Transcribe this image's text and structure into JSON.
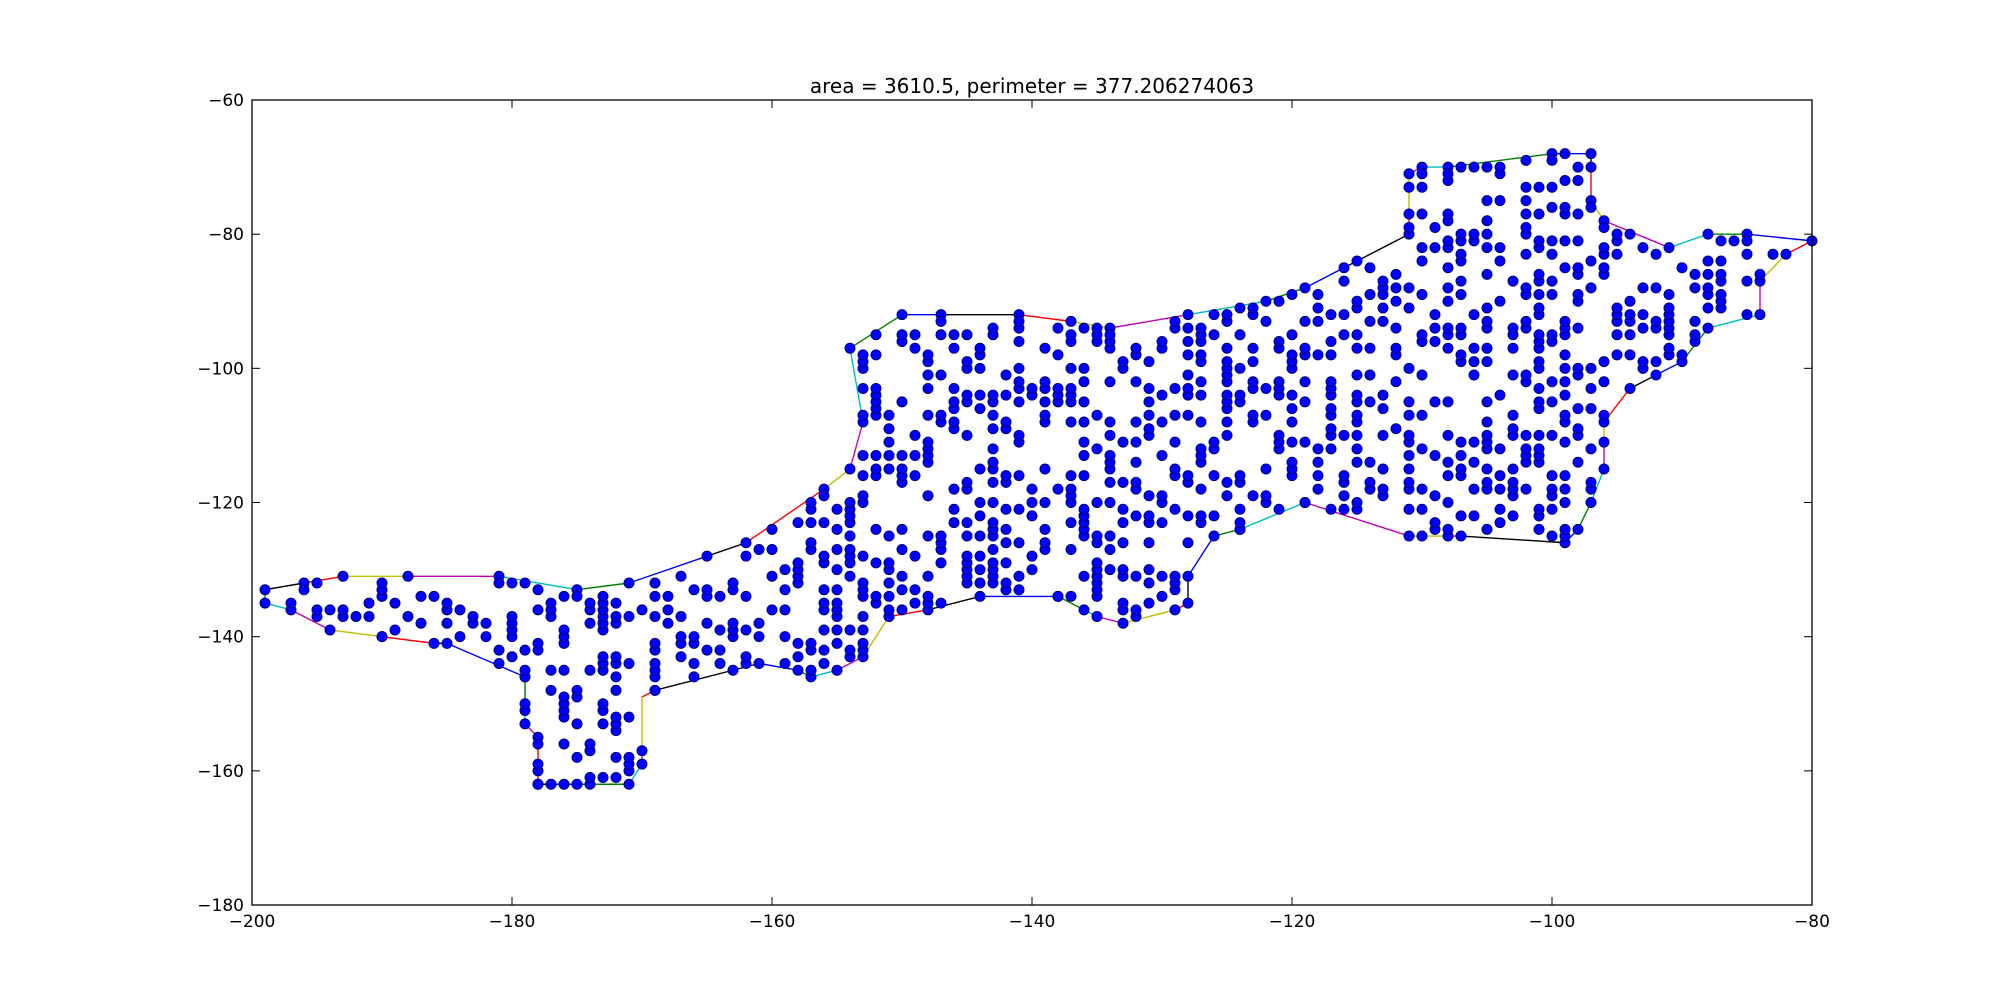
{
  "chart_data": {
    "type": "scatter",
    "title": "area = 3610.5, perimeter = 377.206274063",
    "xlabel": "",
    "ylabel": "",
    "xlim": [
      -200,
      -80
    ],
    "ylim": [
      -180,
      -60
    ],
    "xticks": [
      -200,
      -180,
      -160,
      -140,
      -120,
      -100,
      -80
    ],
    "yticks": [
      -180,
      -160,
      -140,
      -120,
      -100,
      -80,
      -60
    ],
    "xtick_labels": [
      "−200",
      "−180",
      "−160",
      "−140",
      "−120",
      "−100",
      "−80"
    ],
    "ytick_labels": [
      "−180",
      "−160",
      "−140",
      "−120",
      "−100",
      "−80",
      "−60"
    ],
    "grid": false,
    "point_color": "#0000ff",
    "point_edge_color": "#000080",
    "boundary": {
      "note_colors": [
        "#000000",
        "#ff0000",
        "#bfbf00",
        "#bf00bf",
        "#00bfbf",
        "#008000",
        "#0000ff"
      ],
      "vertices": [
        [
          -199,
          -133
        ],
        [
          -196,
          -132
        ],
        [
          -193,
          -131
        ],
        [
          -188,
          -131
        ],
        [
          -181,
          -131
        ],
        [
          -175,
          -133
        ],
        [
          -171,
          -132
        ],
        [
          -165,
          -128
        ],
        [
          -162,
          -126
        ],
        [
          -156,
          -118
        ],
        [
          -154,
          -115
        ],
        [
          -153,
          -108
        ],
        [
          -154,
          -97
        ],
        [
          -150,
          -92
        ],
        [
          -147,
          -92
        ],
        [
          -141,
          -92
        ],
        [
          -137,
          -93
        ],
        [
          -134,
          -94
        ],
        [
          -128,
          -92
        ],
        [
          -122,
          -90
        ],
        [
          -119,
          -88
        ],
        [
          -116,
          -85
        ],
        [
          -111,
          -80
        ],
        [
          -111,
          -77
        ],
        [
          -111,
          -71
        ],
        [
          -110,
          -70
        ],
        [
          -108,
          -70
        ],
        [
          -100,
          -68
        ],
        [
          -97,
          -68
        ],
        [
          -97,
          -70
        ],
        [
          -97,
          -75
        ],
        [
          -96,
          -78
        ],
        [
          -91,
          -82
        ],
        [
          -88,
          -80
        ],
        [
          -85,
          -80
        ],
        [
          -80,
          -81
        ],
        [
          -80,
          -81
        ],
        [
          -82,
          -83
        ],
        [
          -84,
          -87
        ],
        [
          -84,
          -92
        ],
        [
          -88,
          -94
        ],
        [
          -90,
          -99
        ],
        [
          -92,
          -101
        ],
        [
          -94,
          -103
        ],
        [
          -96,
          -108
        ],
        [
          -96,
          -111
        ],
        [
          -96,
          -115
        ],
        [
          -97,
          -120
        ],
        [
          -98,
          -124
        ],
        [
          -99,
          -126
        ],
        [
          -107,
          -125
        ],
        [
          -108,
          -125
        ],
        [
          -111,
          -125
        ],
        [
          -119,
          -120
        ],
        [
          -124,
          -124
        ],
        [
          -126,
          -125
        ],
        [
          -128,
          -131
        ],
        [
          -128,
          -135
        ],
        [
          -129,
          -136
        ],
        [
          -133,
          -138
        ],
        [
          -135,
          -137
        ],
        [
          -136,
          -136
        ],
        [
          -138,
          -134
        ],
        [
          -144,
          -134
        ],
        [
          -148,
          -136
        ],
        [
          -151,
          -137
        ],
        [
          -153,
          -143
        ],
        [
          -155,
          -145
        ],
        [
          -157,
          -146
        ],
        [
          -158,
          -145
        ],
        [
          -161,
          -144
        ],
        [
          -169,
          -148
        ],
        [
          -170,
          -149
        ],
        [
          -170,
          -157
        ],
        [
          -170,
          -159
        ],
        [
          -171,
          -162
        ],
        [
          -175,
          -162
        ],
        [
          -177,
          -162
        ],
        [
          -178,
          -162
        ],
        [
          -178,
          -156
        ],
        [
          -178,
          -155
        ],
        [
          -179,
          -153
        ],
        [
          -179,
          -151
        ],
        [
          -179,
          -146
        ],
        [
          -185,
          -141
        ],
        [
          -186,
          -141
        ],
        [
          -190,
          -140
        ],
        [
          -194,
          -139
        ],
        [
          -197,
          -136
        ],
        [
          -199,
          -135
        ]
      ]
    },
    "points_description": "approx. 1000 scattered sample points filling the polygon; generated from hull plus interior grid",
    "extreme_points": [
      [
        -199,
        -133
      ],
      [
        -199,
        -135
      ],
      [
        -196,
        -132
      ],
      [
        -197,
        -136
      ],
      [
        -193,
        -131
      ],
      [
        -194,
        -139
      ],
      [
        -188,
        -131
      ],
      [
        -190,
        -140
      ],
      [
        -181,
        -131
      ],
      [
        -185,
        -141
      ],
      [
        -175,
        -133
      ],
      [
        -178,
        -162
      ],
      [
        -177,
        -162
      ],
      [
        -175,
        -162
      ],
      [
        -171,
        -162
      ],
      [
        -170,
        -159
      ],
      [
        -170,
        -157
      ],
      [
        -169,
        -148
      ],
      [
        -171,
        -132
      ],
      [
        -165,
        -128
      ],
      [
        -162,
        -126
      ],
      [
        -161,
        -144
      ],
      [
        -157,
        -146
      ],
      [
        -155,
        -145
      ],
      [
        -156,
        -118
      ],
      [
        -154,
        -115
      ],
      [
        -153,
        -108
      ],
      [
        -154,
        -97
      ],
      [
        -150,
        -92
      ],
      [
        -147,
        -92
      ],
      [
        -141,
        -92
      ],
      [
        -137,
        -93
      ],
      [
        -134,
        -94
      ],
      [
        -128,
        -92
      ],
      [
        -122,
        -90
      ],
      [
        -119,
        -88
      ],
      [
        -116,
        -85
      ],
      [
        -111,
        -80
      ],
      [
        -111,
        -77
      ],
      [
        -111,
        -71
      ],
      [
        -110,
        -70
      ],
      [
        -108,
        -70
      ],
      [
        -100,
        -68
      ],
      [
        -97,
        -68
      ],
      [
        -99,
        -68
      ],
      [
        -97,
        -70
      ],
      [
        -97,
        -75
      ],
      [
        -96,
        -78
      ],
      [
        -91,
        -82
      ],
      [
        -88,
        -80
      ],
      [
        -85,
        -80
      ],
      [
        -80,
        -81
      ],
      [
        -82,
        -83
      ],
      [
        -84,
        -87
      ],
      [
        -84,
        -92
      ],
      [
        -88,
        -94
      ],
      [
        -90,
        -99
      ],
      [
        -92,
        -101
      ],
      [
        -94,
        -103
      ],
      [
        -96,
        -108
      ],
      [
        -96,
        -111
      ],
      [
        -96,
        -115
      ],
      [
        -97,
        -120
      ],
      [
        -98,
        -124
      ],
      [
        -99,
        -126
      ],
      [
        -107,
        -125
      ],
      [
        -108,
        -125
      ],
      [
        -111,
        -125
      ],
      [
        -119,
        -120
      ],
      [
        -124,
        -124
      ],
      [
        -126,
        -125
      ],
      [
        -128,
        -131
      ],
      [
        -128,
        -135
      ],
      [
        -129,
        -136
      ],
      [
        -133,
        -138
      ],
      [
        -135,
        -137
      ],
      [
        -136,
        -136
      ],
      [
        -138,
        -134
      ],
      [
        -144,
        -134
      ],
      [
        -148,
        -136
      ],
      [
        -151,
        -137
      ],
      [
        -153,
        -143
      ],
      [
        -158,
        -145
      ],
      [
        -179,
        -146
      ],
      [
        -179,
        -151
      ],
      [
        -179,
        -153
      ],
      [
        -178,
        -155
      ],
      [
        -178,
        -156
      ],
      [
        -186,
        -141
      ]
    ]
  }
}
